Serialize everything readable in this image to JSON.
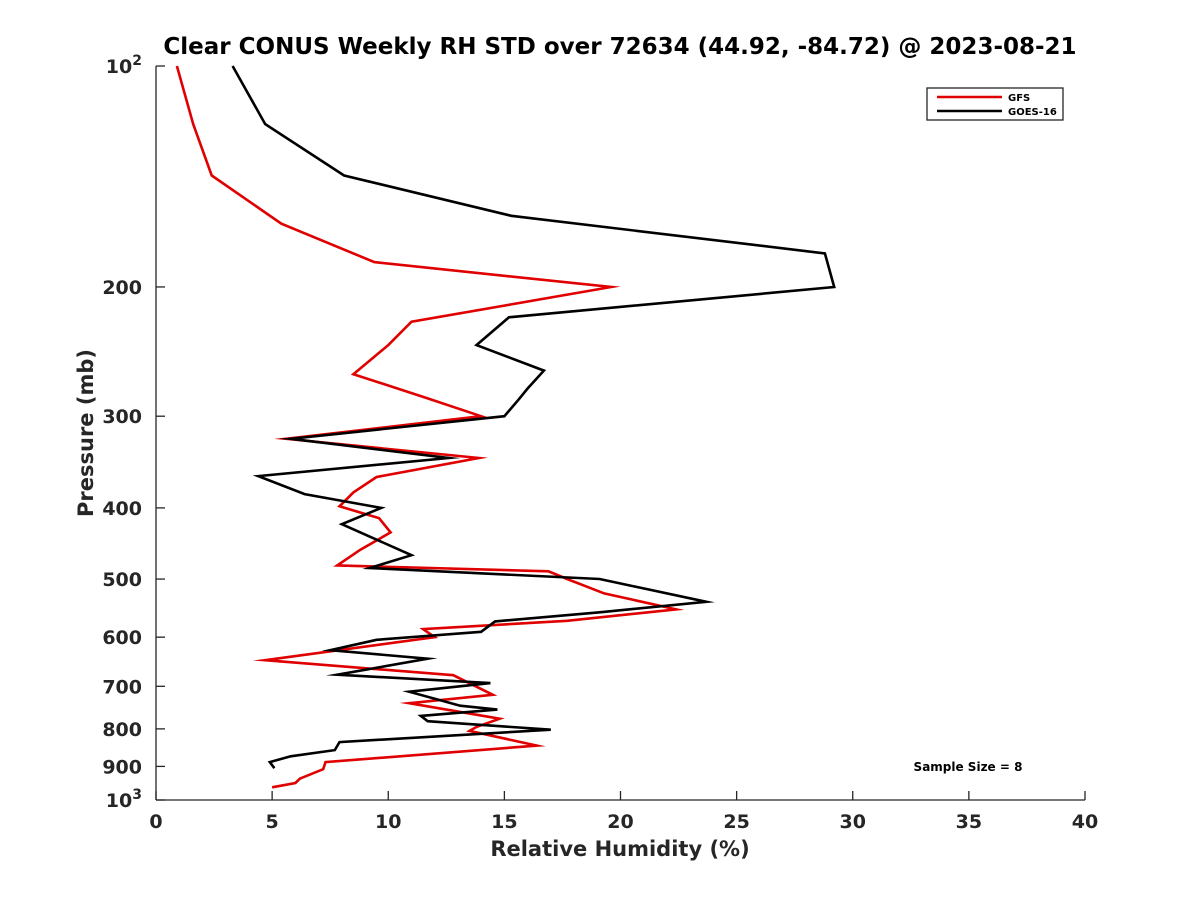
{
  "chart_data": {
    "type": "line",
    "title": "Clear CONUS Weekly RH STD over 72634 (44.92, -84.72) @ 2023-08-21",
    "xlabel": "Relative Humidity (%)",
    "ylabel": "Pressure (mb)",
    "xlim": [
      0,
      40
    ],
    "ylim": [
      100,
      1000
    ],
    "yscale": "log",
    "y_reversed": true,
    "grid": false,
    "x_ticks": [
      0,
      5,
      10,
      15,
      20,
      25,
      30,
      35,
      40
    ],
    "x_tick_labels": [
      "0",
      "5",
      "10",
      "15",
      "20",
      "25",
      "30",
      "35",
      "40"
    ],
    "y_ticks": [
      100,
      200,
      300,
      400,
      500,
      600,
      700,
      800,
      900,
      1000
    ],
    "y_tick_labels": [
      {
        "base": "10",
        "exp": "2"
      },
      {
        "text": "200"
      },
      {
        "text": "300"
      },
      {
        "text": "400"
      },
      {
        "text": "500"
      },
      {
        "text": "600"
      },
      {
        "text": "700"
      },
      {
        "text": "800"
      },
      {
        "text": "900"
      },
      {
        "base": "10",
        "exp": "3"
      }
    ],
    "legend": {
      "position": "top-right",
      "entries": [
        "GFS",
        "GOES-16"
      ]
    },
    "annotation": "Sample Size = 8",
    "series": [
      {
        "name": "GFS",
        "color": "#e00000",
        "points": [
          [
            0.9,
            100
          ],
          [
            1.6,
            120
          ],
          [
            2.4,
            141
          ],
          [
            5.4,
            164
          ],
          [
            9.4,
            185
          ],
          [
            19.6,
            200
          ],
          [
            11.0,
            223
          ],
          [
            10.0,
            240
          ],
          [
            8.5,
            263
          ],
          [
            11.6,
            283
          ],
          [
            14.0,
            300
          ],
          [
            5.6,
            322
          ],
          [
            13.9,
            342
          ],
          [
            9.5,
            363
          ],
          [
            8.5,
            381
          ],
          [
            7.9,
            398
          ],
          [
            9.6,
            413
          ],
          [
            10.1,
            432
          ],
          [
            8.8,
            456
          ],
          [
            7.8,
            479
          ],
          [
            16.9,
            488
          ],
          [
            17.7,
            500
          ],
          [
            19.3,
            523
          ],
          [
            22.4,
            550
          ],
          [
            17.7,
            570
          ],
          [
            11.5,
            585
          ],
          [
            12.0,
            600
          ],
          [
            4.7,
            645
          ],
          [
            12.8,
            676
          ],
          [
            14.5,
            719
          ],
          [
            10.9,
            738
          ],
          [
            14.8,
            775
          ],
          [
            13.8,
            795
          ],
          [
            13.5,
            805
          ],
          [
            16.4,
            843
          ],
          [
            7.3,
            888
          ],
          [
            7.2,
            908
          ],
          [
            6.2,
            935
          ],
          [
            6.0,
            948
          ],
          [
            5.0,
            961
          ]
        ]
      },
      {
        "name": "GOES-16",
        "color": "#000000",
        "points": [
          [
            3.3,
            100
          ],
          [
            4.7,
            120
          ],
          [
            8.1,
            141
          ],
          [
            15.3,
            160
          ],
          [
            28.8,
            180
          ],
          [
            29.2,
            200
          ],
          [
            15.2,
            220
          ],
          [
            13.8,
            240
          ],
          [
            16.7,
            260
          ],
          [
            16.0,
            275
          ],
          [
            15.6,
            285
          ],
          [
            15.0,
            300
          ],
          [
            5.8,
            322
          ],
          [
            12.6,
            342
          ],
          [
            4.4,
            362
          ],
          [
            6.4,
            383
          ],
          [
            9.7,
            400
          ],
          [
            8.0,
            421
          ],
          [
            11.0,
            464
          ],
          [
            9.2,
            483
          ],
          [
            19.1,
            500
          ],
          [
            23.7,
            537
          ],
          [
            19.1,
            555
          ],
          [
            14.6,
            571
          ],
          [
            14.0,
            590
          ],
          [
            9.5,
            605
          ],
          [
            7.5,
            625
          ],
          [
            11.7,
            642
          ],
          [
            7.8,
            675
          ],
          [
            14.4,
            693
          ],
          [
            10.9,
            712
          ],
          [
            13.1,
            744
          ],
          [
            14.7,
            753
          ],
          [
            11.4,
            768
          ],
          [
            11.7,
            781
          ],
          [
            17.0,
            802
          ],
          [
            7.9,
            834
          ],
          [
            7.7,
            855
          ],
          [
            5.8,
            872
          ],
          [
            4.9,
            888
          ],
          [
            5.1,
            905
          ]
        ]
      }
    ]
  }
}
